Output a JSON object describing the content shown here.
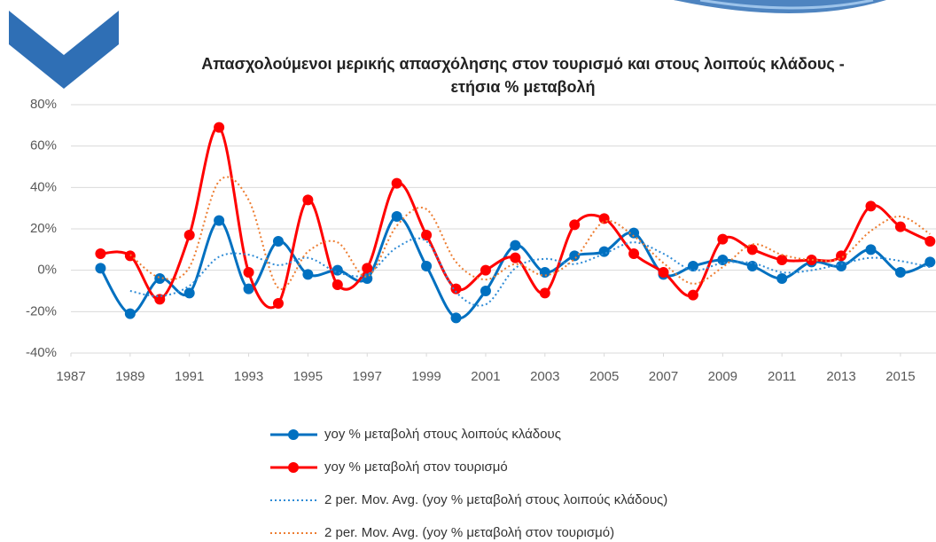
{
  "chart_data": {
    "type": "line",
    "title": [
      "Απασχολούμενοι μερικής απασχόλησης στον τουρισμό και στους λοιπούς κλάδους -",
      "ετήσια % μεταβολή"
    ],
    "x": [
      1988,
      1989,
      1990,
      1991,
      1992,
      1993,
      1994,
      1995,
      1996,
      1997,
      1998,
      1999,
      2000,
      2001,
      2002,
      2003,
      2004,
      2005,
      2006,
      2007,
      2008,
      2009,
      2010,
      2011,
      2012,
      2013,
      2014,
      2015,
      2016
    ],
    "series": [
      {
        "name": "yoy % μεταβολή στους λοιπούς κλάδους",
        "color": "#0070c0",
        "line_style": "solid",
        "markers": true,
        "values": [
          1,
          -21,
          -4,
          -11,
          24,
          -9,
          14,
          -2,
          0,
          -4,
          26,
          2,
          -23,
          -10,
          12,
          -1,
          7,
          9,
          18,
          -2,
          2,
          5,
          2,
          -4,
          4,
          2,
          10,
          -1,
          4
        ]
      },
      {
        "name": "yoy % μεταβολή στον τουρισμό",
        "color": "#ff0000",
        "line_style": "solid",
        "markers": true,
        "values": [
          8,
          7,
          -14,
          17,
          69,
          -1,
          -16,
          34,
          -7,
          1,
          42,
          17,
          -9,
          0,
          6,
          -11,
          22,
          25,
          8,
          -1,
          -12,
          15,
          10,
          5,
          5,
          7,
          31,
          21,
          14
        ]
      },
      {
        "name": "2 per. Mov. Avg. (yoy % μεταβολή στους λοιπούς κλάδους)",
        "color": "#2e8bd6",
        "line_style": "dotted",
        "markers": false,
        "values": [
          null,
          -10,
          -12.5,
          -7.5,
          6.5,
          7.5,
          2.5,
          6,
          -1,
          -2,
          11,
          14,
          -10.5,
          -16.5,
          1,
          5.5,
          3,
          8,
          13.5,
          8,
          0,
          3.5,
          3.5,
          -1,
          0,
          3,
          6,
          4.5,
          1.5
        ]
      },
      {
        "name": "2 per. Mov. Avg. (yoy % μεταβολή στον τουρισμό)",
        "color": "#ed7d31",
        "line_style": "dotted",
        "markers": false,
        "values": [
          null,
          7.5,
          -3.5,
          1.5,
          43,
          34,
          -8.5,
          9,
          13.5,
          -3,
          21.5,
          29.5,
          4,
          -4.5,
          3,
          -2.5,
          5.5,
          23.5,
          16.5,
          3.5,
          -6.5,
          1.5,
          12.5,
          7.5,
          5,
          6,
          19,
          26,
          17.5
        ]
      }
    ],
    "xlim": [
      1987,
      2016.2
    ],
    "xticks": [
      1987,
      1989,
      1991,
      1993,
      1995,
      1997,
      1999,
      2001,
      2003,
      2005,
      2007,
      2009,
      2011,
      2013,
      2015
    ],
    "ylim": [
      -40,
      80
    ],
    "yticks": [
      {
        "value": -40,
        "label": "-40%"
      },
      {
        "value": -20,
        "label": "-20%"
      },
      {
        "value": 0,
        "label": "0%"
      },
      {
        "value": 20,
        "label": "20%"
      },
      {
        "value": 40,
        "label": "40%"
      },
      {
        "value": 60,
        "label": "60%"
      },
      {
        "value": 80,
        "label": "80%"
      }
    ],
    "grid": true,
    "smooth": true,
    "legend": "bottom"
  }
}
